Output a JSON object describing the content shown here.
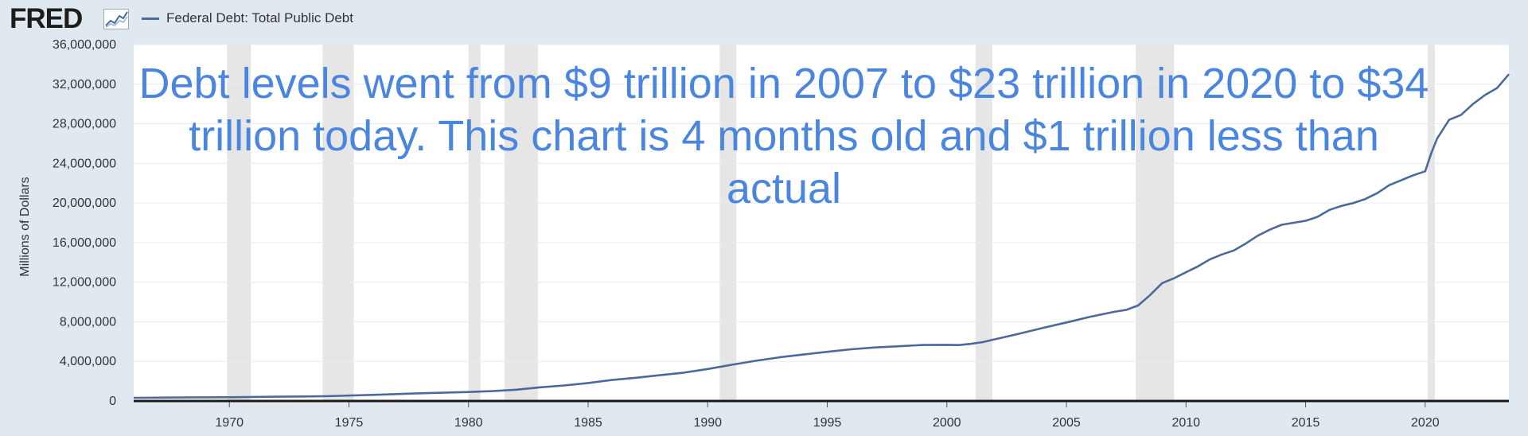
{
  "header": {
    "logo_text": "FRED",
    "logo_mark": "chart-line-icon"
  },
  "chart_data": {
    "type": "line",
    "title": "",
    "xlabel": "",
    "ylabel": "Millions of Dollars",
    "xlim": [
      1966,
      2023.5
    ],
    "ylim": [
      0,
      36000000
    ],
    "yticks": [
      0,
      4000000,
      8000000,
      12000000,
      16000000,
      20000000,
      24000000,
      28000000,
      32000000,
      36000000
    ],
    "ytick_labels": [
      "0",
      "4,000,000",
      "8,000,000",
      "12,000,000",
      "16,000,000",
      "20,000,000",
      "24,000,000",
      "28,000,000",
      "32,000,000",
      "36,000,000"
    ],
    "xticks": [
      1970,
      1975,
      1980,
      1985,
      1990,
      1995,
      2000,
      2005,
      2010,
      2015,
      2020
    ],
    "xtick_labels": [
      "1970",
      "1975",
      "1980",
      "1985",
      "1990",
      "1995",
      "2000",
      "2005",
      "2010",
      "2015",
      "2020"
    ],
    "grid": true,
    "legend": "top-left",
    "series": [
      {
        "name": "Federal Debt: Total Public Debt",
        "color": "#4b6a9b",
        "x": [
          1966,
          1968,
          1970,
          1972,
          1974,
          1976,
          1978,
          1980,
          1981,
          1982,
          1983,
          1984,
          1985,
          1986,
          1987,
          1988,
          1989,
          1990,
          1991,
          1992,
          1993,
          1994,
          1995,
          1996,
          1997,
          1998,
          1999,
          2000,
          2000.5,
          2001,
          2001.5,
          2002,
          2003,
          2004,
          2005,
          2006,
          2007,
          2007.5,
          2008,
          2008.5,
          2009,
          2009.5,
          2010,
          2010.5,
          2011,
          2011.5,
          2012,
          2012.5,
          2013,
          2013.5,
          2014,
          2014.5,
          2015,
          2015.5,
          2016,
          2016.5,
          2017,
          2017.5,
          2018,
          2018.5,
          2019,
          2019.5,
          2020,
          2020.25,
          2020.5,
          2021,
          2021.5,
          2022,
          2022.5,
          2023,
          2023.5
        ],
        "y": [
          320000,
          350000,
          380000,
          430000,
          480000,
          620000,
          780000,
          910000,
          1000000,
          1140000,
          1380000,
          1570000,
          1820000,
          2120000,
          2350000,
          2600000,
          2860000,
          3230000,
          3660000,
          4060000,
          4410000,
          4690000,
          4970000,
          5220000,
          5410000,
          5530000,
          5660000,
          5670000,
          5650000,
          5770000,
          5950000,
          6230000,
          6780000,
          7380000,
          7930000,
          8510000,
          9010000,
          9200000,
          9650000,
          10700000,
          11900000,
          12400000,
          13000000,
          13600000,
          14300000,
          14800000,
          15200000,
          15900000,
          16700000,
          17300000,
          17800000,
          18000000,
          18200000,
          18600000,
          19300000,
          19700000,
          20000000,
          20400000,
          21000000,
          21800000,
          22300000,
          22800000,
          23200000,
          25000000,
          26500000,
          28400000,
          28900000,
          30000000,
          30900000,
          31600000,
          33000000
        ]
      }
    ],
    "recessions": [
      [
        1969.9,
        1970.9
      ],
      [
        1973.9,
        1975.2
      ],
      [
        1980.0,
        1980.5
      ],
      [
        1981.5,
        1982.9
      ],
      [
        1990.5,
        1991.2
      ],
      [
        2001.2,
        2001.9
      ],
      [
        2007.9,
        2009.5
      ],
      [
        2020.1,
        2020.4
      ]
    ],
    "annotation": "Debt levels went from $9 trillion in 2007 to $23 trillion in 2020 to $34 trillion today. This chart is 4 months old and $1 trillion less than actual"
  }
}
